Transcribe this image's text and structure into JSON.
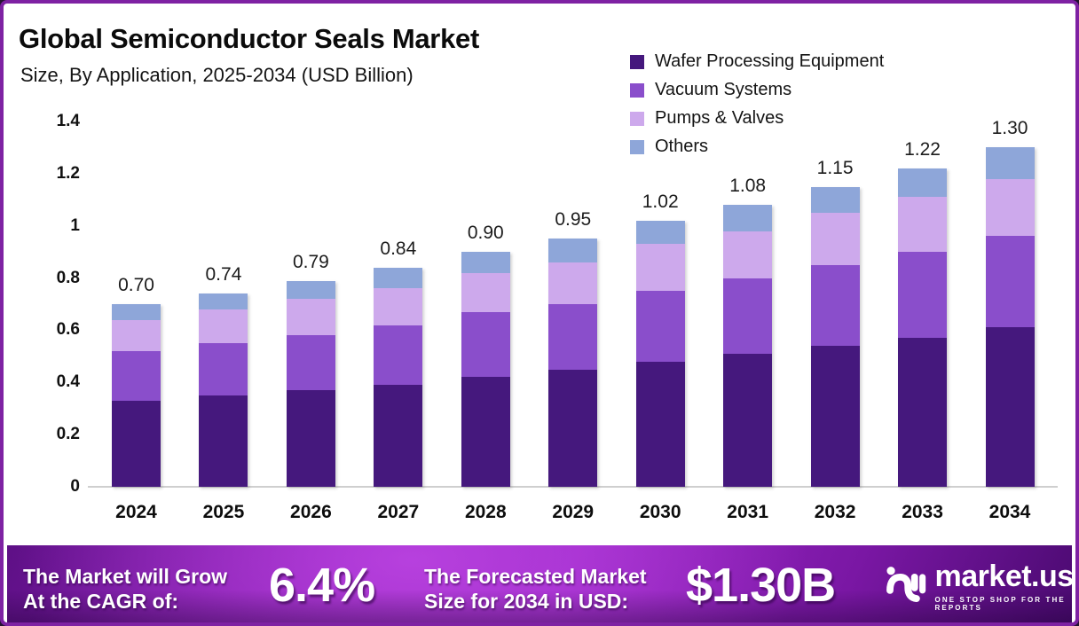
{
  "header": {
    "title": "Global Semiconductor Seals Market",
    "subtitle": "Size, By Application, 2025-2034 (USD Billion)"
  },
  "chart_data": {
    "type": "bar",
    "stacked": true,
    "title": "Global Semiconductor Seals Market Size, By Application, 2025-2034 (USD Billion)",
    "categories": [
      "2024",
      "2025",
      "2026",
      "2027",
      "2028",
      "2029",
      "2030",
      "2031",
      "2032",
      "2033",
      "2034"
    ],
    "series": [
      {
        "name": "Wafer Processing Equipment",
        "color": "#45187d",
        "values": [
          0.33,
          0.35,
          0.37,
          0.39,
          0.42,
          0.45,
          0.48,
          0.51,
          0.54,
          0.57,
          0.61
        ]
      },
      {
        "name": "Vacuum Systems",
        "color": "#8a4ecb",
        "values": [
          0.19,
          0.2,
          0.21,
          0.23,
          0.25,
          0.25,
          0.27,
          0.29,
          0.31,
          0.33,
          0.35
        ]
      },
      {
        "name": "Pumps & Valves",
        "color": "#cda9ec",
        "values": [
          0.12,
          0.13,
          0.14,
          0.14,
          0.15,
          0.16,
          0.18,
          0.18,
          0.2,
          0.21,
          0.22
        ]
      },
      {
        "name": "Others",
        "color": "#8ea6d9",
        "values": [
          0.06,
          0.06,
          0.07,
          0.08,
          0.08,
          0.09,
          0.09,
          0.1,
          0.1,
          0.11,
          0.12
        ]
      }
    ],
    "totals": [
      "0.70",
      "0.74",
      "0.79",
      "0.84",
      "0.90",
      "0.95",
      "1.02",
      "1.08",
      "1.15",
      "1.22",
      "1.30"
    ],
    "y_axis": {
      "ticks": [
        "1.4",
        "1.2",
        "1",
        "0.8",
        "0.6",
        "0.4",
        "0.2",
        "0"
      ],
      "min": 0,
      "max": 1.4
    },
    "xlabel": "",
    "ylabel": "",
    "grid": false,
    "legend_position": "top-right"
  },
  "banner": {
    "cagr_label_line1": "The Market will Grow",
    "cagr_label_line2": "At the CAGR of:",
    "cagr_value": "6.4%",
    "forecast_label_line1": "The Forecasted Market",
    "forecast_label_line2": "Size for 2034 in USD:",
    "forecast_value": "$1.30B",
    "brand": {
      "name": "market.us",
      "tagline": "ONE STOP SHOP FOR THE REPORTS"
    }
  },
  "colors": {
    "frame_border": "#7e22a3",
    "outer_background": "#231330",
    "banner_purple": "#9a27c6",
    "wafer_processing_equipment": "#45187d",
    "vacuum_systems": "#8a4ecb",
    "pumps_and_valves": "#cda9ec",
    "others": "#8ea6d9"
  }
}
